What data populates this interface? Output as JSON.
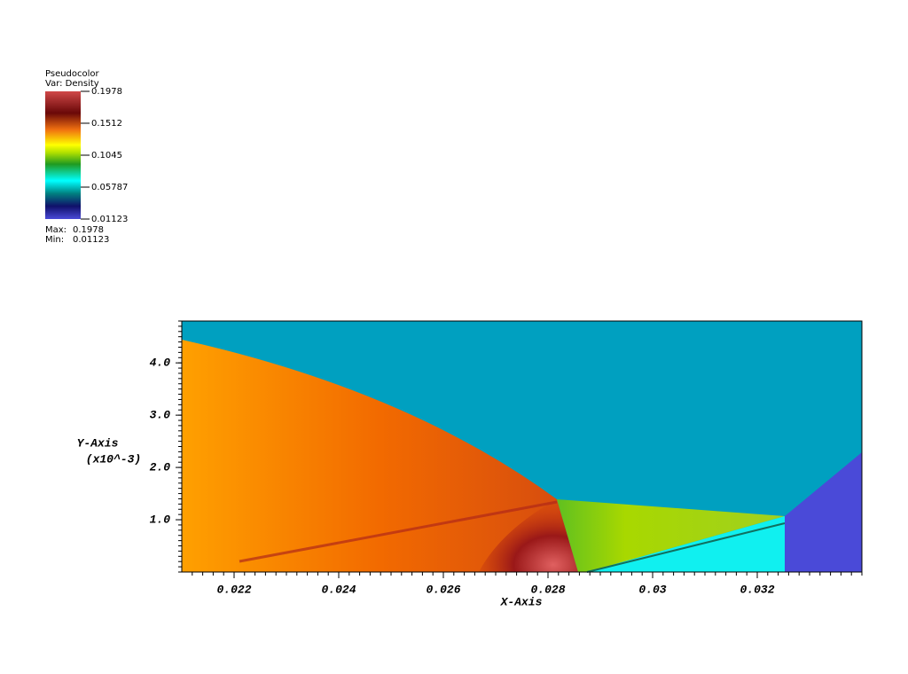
{
  "chart_data": {
    "type": "pseudocolor",
    "xlabel": "X-Axis",
    "ylabel": "Y-Axis",
    "ylabel_units": "(x10^-3)",
    "xlim": [
      0.021,
      0.034
    ],
    "ylim": [
      0,
      4.8
    ],
    "xticks": [
      0.022,
      0.024,
      0.026,
      0.028,
      0.03,
      0.032
    ],
    "yticks": [
      {
        "value": 1,
        "label": "1.0"
      },
      {
        "value": 2,
        "label": "2.0"
      },
      {
        "value": 3,
        "label": "3.0"
      },
      {
        "value": 4,
        "label": "4.0"
      }
    ],
    "colorbar": {
      "title": "Pseudocolor",
      "variable": "Var: Density",
      "clim": [
        0.01123,
        0.1978
      ],
      "cticks": [
        0.1978,
        0.1512,
        0.1045,
        0.05787,
        0.01123
      ],
      "max_label": "Max:",
      "max": 0.1978,
      "min_label": "Min:",
      "min": 0.01123
    }
  }
}
